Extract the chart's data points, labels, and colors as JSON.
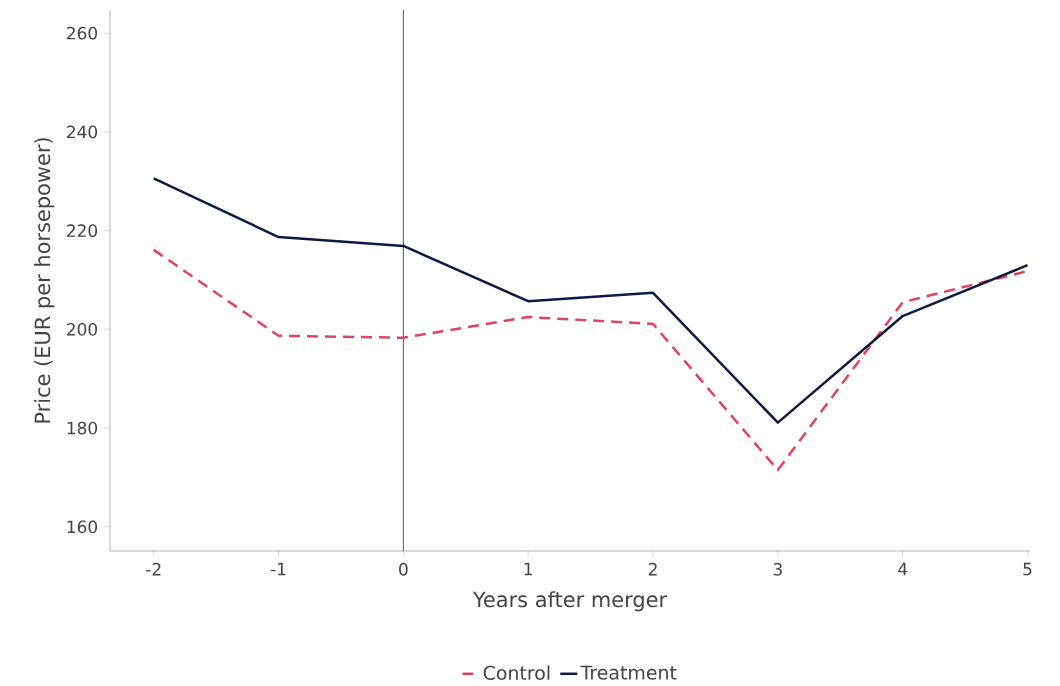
{
  "chart_data": {
    "type": "line",
    "xlabel": "Years after merger",
    "ylabel": "Price (EUR per horsepower)",
    "x": [
      -2,
      -1,
      0,
      1,
      2,
      3,
      4,
      5
    ],
    "series": [
      {
        "name": "Control",
        "color": "#e0435e",
        "line_style": "dashed",
        "values": [
          216.1,
          198.7,
          198.3,
          202.5,
          201.1,
          171.5,
          205.5,
          211.8
        ]
      },
      {
        "name": "Treatment",
        "color": "#0d1a45",
        "line_style": "solid",
        "values": [
          230.6,
          218.7,
          216.9,
          205.7,
          207.4,
          181.1,
          202.7,
          213.0
        ]
      }
    ],
    "xlim": [
      -2.35,
      5.02
    ],
    "ylim": [
      155.1,
      264.7
    ],
    "xticks": [
      {
        "value": -2,
        "label": "-2"
      },
      {
        "value": -1,
        "label": "-1"
      },
      0,
      1,
      2,
      3,
      4,
      5
    ],
    "yticks": [
      160,
      180,
      200,
      220,
      240,
      260
    ],
    "ref_lines": [
      {
        "axis": "x",
        "value": 0,
        "color": "#555555"
      }
    ],
    "grid": false,
    "legend": "bottom"
  }
}
